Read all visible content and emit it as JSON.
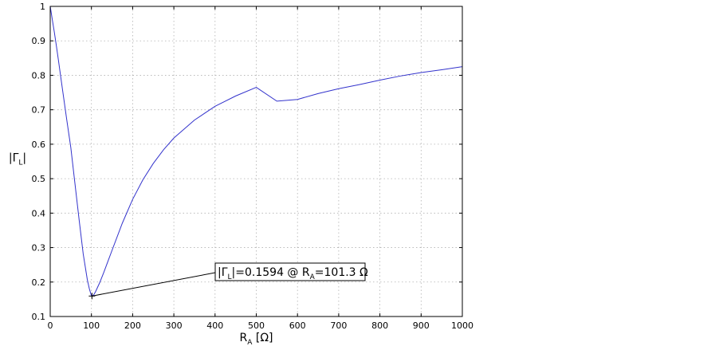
{
  "chart_data": {
    "type": "line",
    "xlabel": {
      "main": "R",
      "sub": "A",
      "suffix": " [Ω]"
    },
    "ylabel": {
      "prefix": "|Γ",
      "sub": "L",
      "suffix": "|"
    },
    "xlim": [
      0,
      1000
    ],
    "ylim": [
      0.1,
      1.0
    ],
    "x_ticks": [
      0,
      100,
      200,
      300,
      400,
      500,
      600,
      700,
      800,
      900,
      1000
    ],
    "x_tick_labels": [
      "0",
      "100",
      "200",
      "300",
      "400",
      "500",
      "600",
      "700",
      "800",
      "900",
      "1000"
    ],
    "y_ticks": [
      0.1,
      0.2,
      0.3,
      0.4,
      0.5,
      0.6,
      0.7,
      0.8,
      0.9,
      1.0
    ],
    "y_tick_labels": [
      "0.1",
      "0.2",
      "0.3",
      "0.4",
      "0.5",
      "0.6",
      "0.7",
      "0.8",
      "0.9",
      "1"
    ],
    "grid": true,
    "series": [
      {
        "color": "#3333cc",
        "x": [
          0,
          2,
          5,
          10,
          15,
          20,
          25,
          30,
          40,
          50,
          60,
          70,
          80,
          90,
          95,
          100,
          101.3,
          105,
          110,
          120,
          130,
          140,
          150,
          175,
          200,
          225,
          250,
          275,
          300,
          350,
          400,
          450,
          500,
          550,
          600,
          650,
          700,
          750,
          800,
          850,
          900,
          950,
          1000
        ],
        "y": [
          1.0,
          0.985,
          0.962,
          0.925,
          0.885,
          0.843,
          0.8,
          0.757,
          0.672,
          0.59,
          0.486,
          0.382,
          0.282,
          0.207,
          0.18,
          0.16,
          0.1594,
          0.162,
          0.172,
          0.198,
          0.228,
          0.26,
          0.292,
          0.371,
          0.44,
          0.497,
          0.544,
          0.584,
          0.618,
          0.67,
          0.71,
          0.74,
          0.765,
          0.725,
          0.73,
          0.747,
          0.761,
          0.773,
          0.786,
          0.798,
          0.808,
          0.816,
          0.825
        ]
      }
    ],
    "marker": {
      "x": 101.3,
      "y": 0.1594,
      "symbol": "+"
    },
    "annotation": {
      "lines": [
        {
          "text": "|Γ",
          "sub": false
        },
        {
          "text": "L",
          "sub": true
        },
        {
          "text": "|=0.1594 @ R",
          "sub": false
        },
        {
          "text": "A",
          "sub": true
        },
        {
          "text": "=101.3 Ω",
          "sub": false
        }
      ],
      "anchor_x": 101.3,
      "anchor_y": 0.1594
    }
  }
}
